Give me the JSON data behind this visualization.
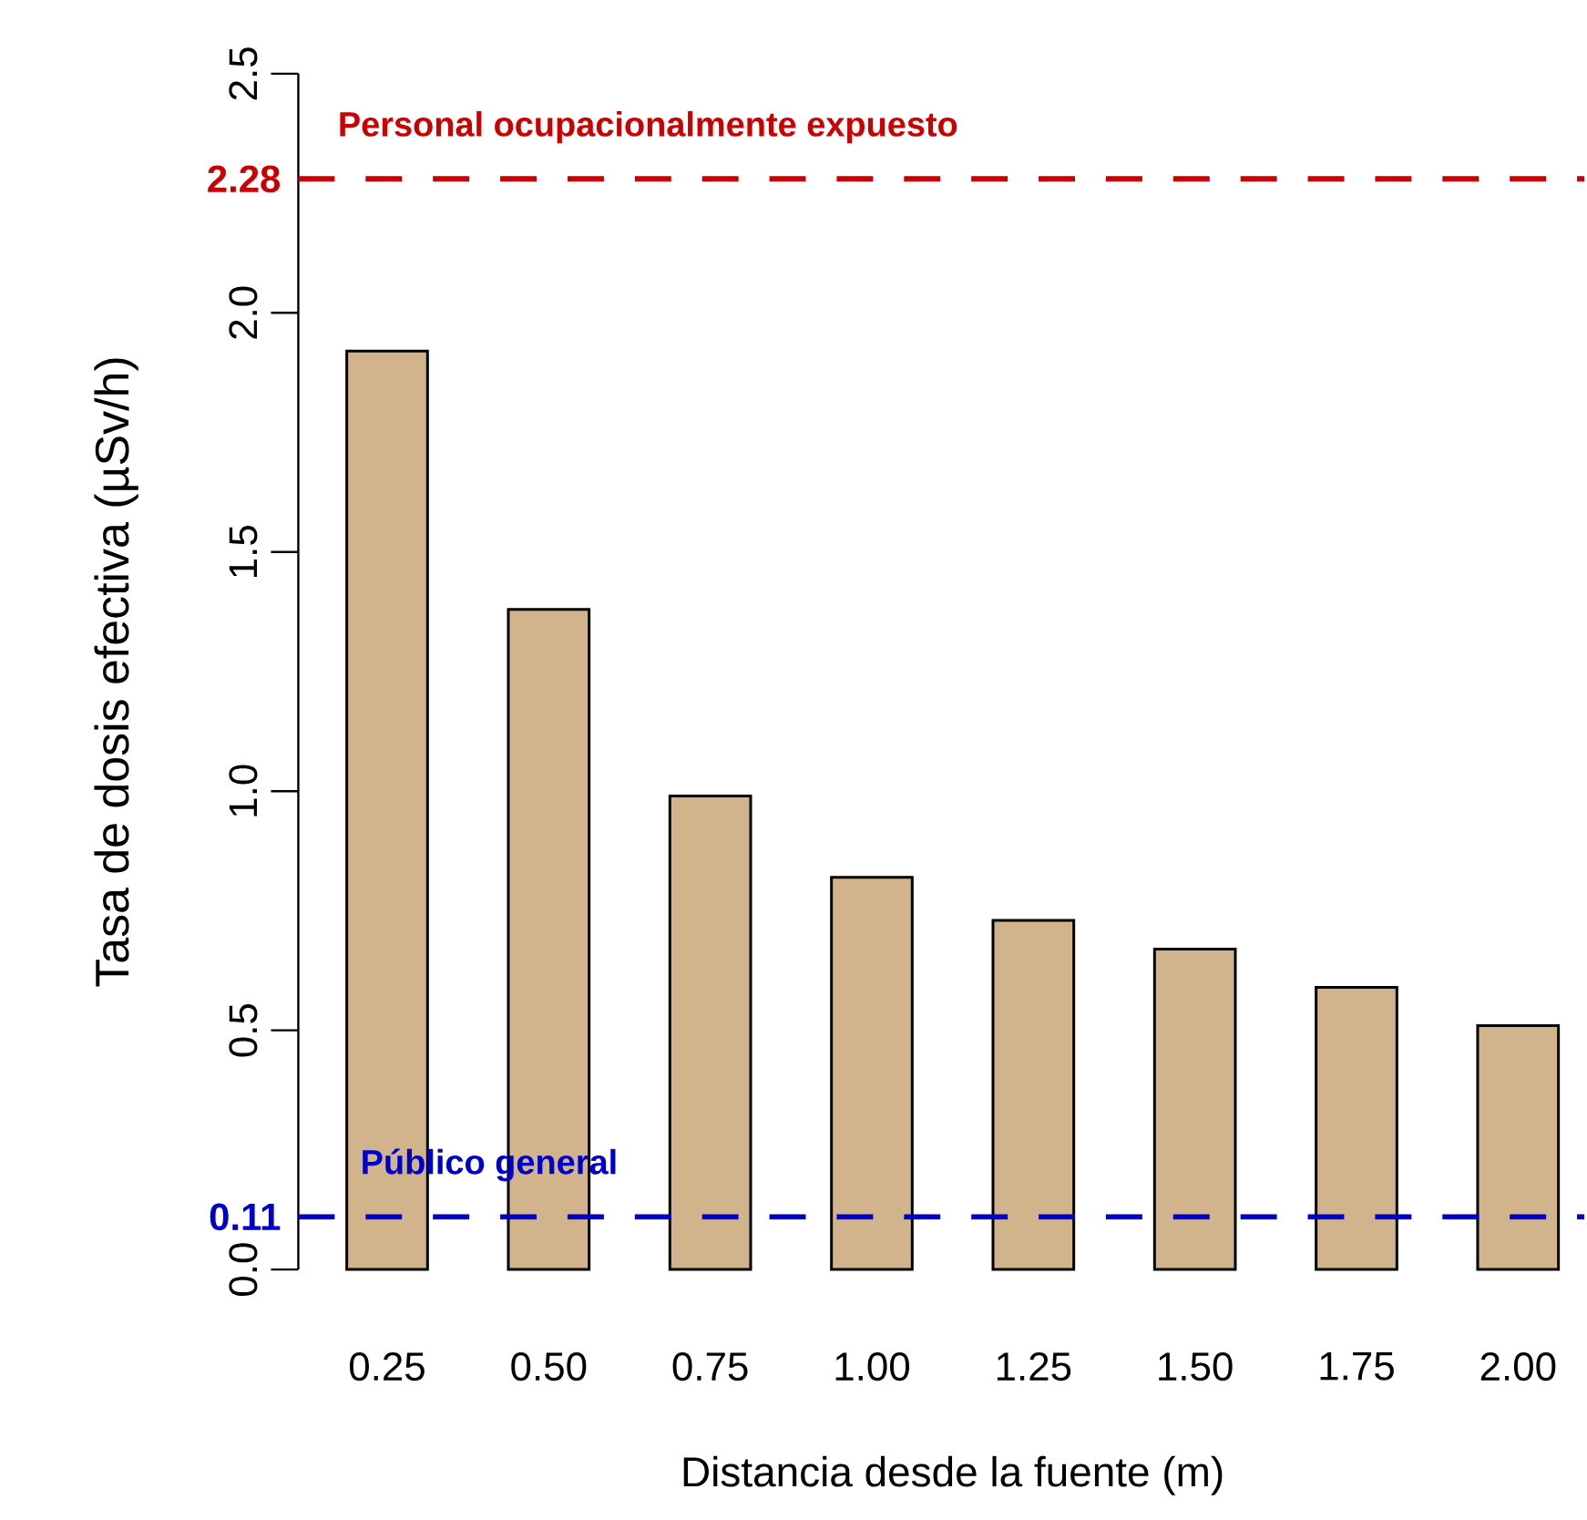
{
  "chart_data": {
    "type": "bar",
    "xlabel": "Distancia desde la fuente (m)",
    "ylabel": "Tasa de dosis efectiva (µSv/h)",
    "categories": [
      "0.25",
      "0.50",
      "0.75",
      "1.00",
      "1.25",
      "1.50",
      "1.75",
      "2.00"
    ],
    "values": [
      1.92,
      1.38,
      0.99,
      0.82,
      0.73,
      0.67,
      0.59,
      0.51
    ],
    "color": "#d2b48c",
    "ylim": [
      0,
      2.5
    ],
    "yticks": [
      {
        "value": 0,
        "label": "0.0"
      },
      {
        "value": 0.5,
        "label": "0.5"
      },
      {
        "value": 1,
        "label": "1.0"
      },
      {
        "value": 1.5,
        "label": "1.5"
      },
      {
        "value": 2,
        "label": "2.0"
      },
      {
        "value": 2.5,
        "label": "2.5"
      }
    ],
    "annotations": [
      "2.28",
      "0.11"
    ],
    "ref_lines": [
      {
        "axis": "y",
        "value": 2.28,
        "label": "Personal ocupacionalmente expuesto",
        "color": "#cc0000",
        "line_style": "dashed"
      },
      {
        "axis": "y",
        "value": 0.11,
        "label": "Público general",
        "color": "#0000cc",
        "line_style": "dashed"
      }
    ],
    "grid": false
  }
}
